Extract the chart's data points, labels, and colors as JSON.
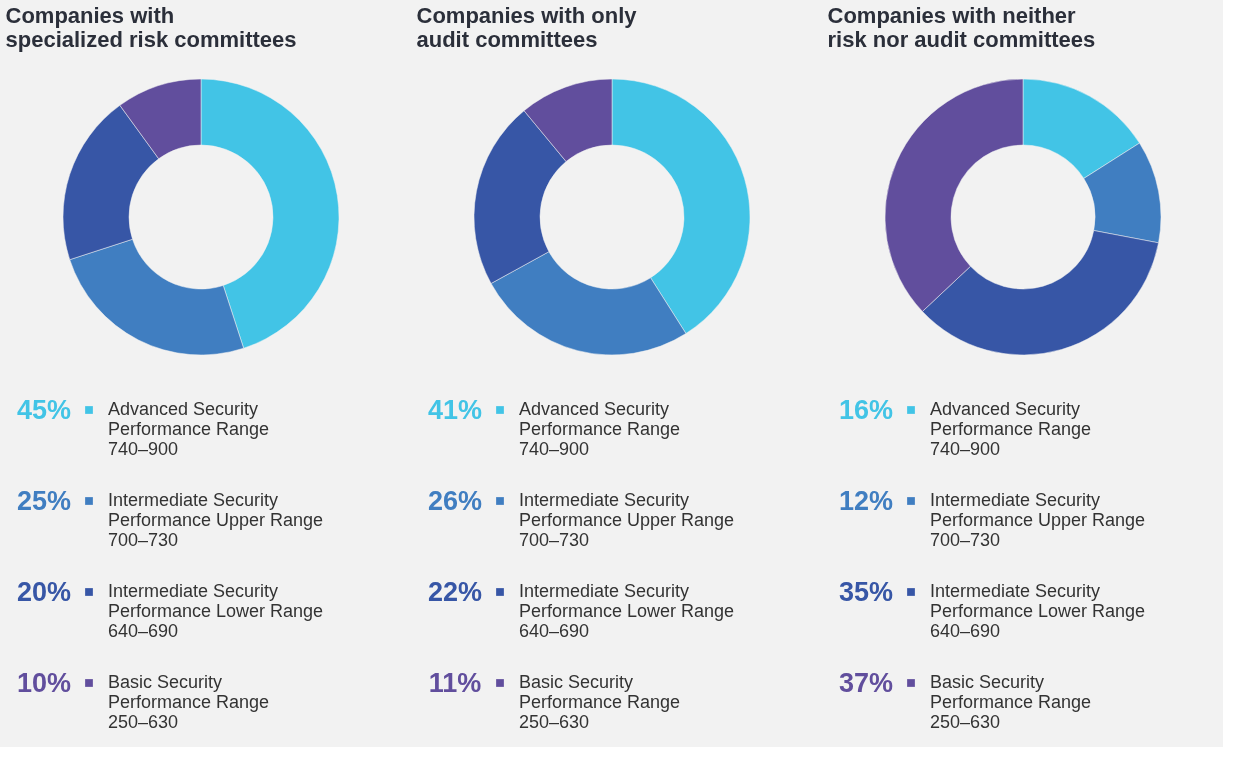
{
  "chart_data": [
    {
      "type": "donut",
      "title": "Companies with\nspecialized risk committees",
      "categories": [
        "Advanced Security\nPerformance Range\n740–900",
        "Intermediate Security\nPerformance Upper Range\n700–730",
        "Intermediate Security\nPerformance Lower Range\n640–690",
        "Basic Security\nPerformance Range\n250–630"
      ],
      "values": [
        45,
        25,
        20,
        10
      ],
      "value_labels": [
        "45%",
        "25%",
        "20%",
        "10%"
      ],
      "colors": [
        "#42c4e6",
        "#407ec1",
        "#3756a6",
        "#614e9d"
      ],
      "legend": "bottom"
    },
    {
      "type": "donut",
      "title": "Companies with only\naudit committees",
      "categories": [
        "Advanced Security\nPerformance Range\n740–900",
        "Intermediate Security\nPerformance Upper Range\n700–730",
        "Intermediate Security\nPerformance Lower Range\n640–690",
        "Basic Security\nPerformance Range\n250–630"
      ],
      "values": [
        41,
        26,
        22,
        11
      ],
      "value_labels": [
        "41%",
        "26%",
        "22%",
        "11%"
      ],
      "colors": [
        "#42c4e6",
        "#407ec1",
        "#3756a6",
        "#614e9d"
      ],
      "legend": "bottom"
    },
    {
      "type": "donut",
      "title": "Companies with neither\nrisk nor audit committees",
      "categories": [
        "Advanced Security\nPerformance Range\n740–900",
        "Intermediate Security\nPerformance Upper Range\n700–730",
        "Intermediate Security\nPerformance Lower Range\n640–690",
        "Basic Security\nPerformance Range\n250–630"
      ],
      "values": [
        16,
        12,
        35,
        37
      ],
      "value_labels": [
        "16%",
        "12%",
        "35%",
        "37%"
      ],
      "colors": [
        "#42c4e6",
        "#407ec1",
        "#3756a6",
        "#614e9d"
      ],
      "legend": "bottom"
    }
  ]
}
